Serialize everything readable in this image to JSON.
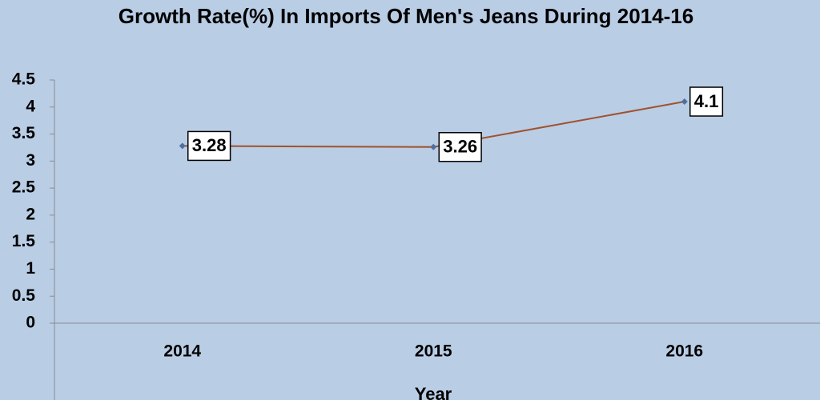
{
  "chart_data": {
    "type": "line",
    "title": "Growth Rate(%) In Imports Of Men's Jeans During 2014-16",
    "x_label": "Year",
    "categories": [
      "2014",
      "2015",
      "2016"
    ],
    "series": [
      {
        "name": "Growth Rate(%)",
        "color": "#a0522d",
        "values": [
          3.28,
          3.26,
          4.1
        ]
      }
    ],
    "ylim": [
      0,
      4.5
    ],
    "yticks": [
      0,
      0.5,
      1,
      1.5,
      2,
      2.5,
      3,
      3.5,
      4,
      4.5
    ],
    "grid": false,
    "legend": false,
    "data_labels": true
  }
}
